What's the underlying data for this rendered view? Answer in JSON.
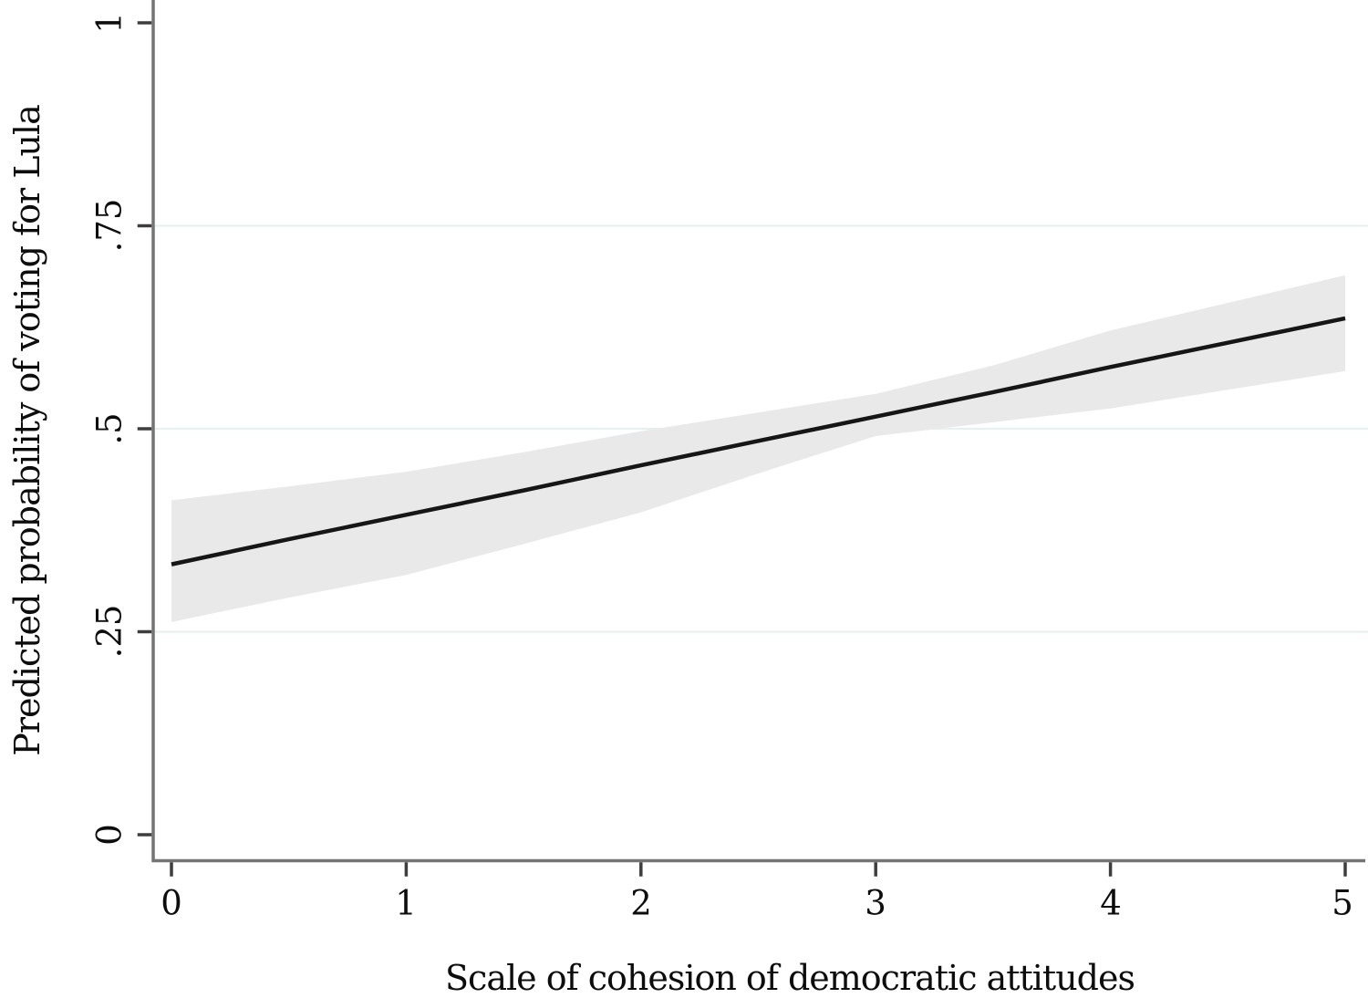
{
  "chart_data": {
    "type": "line",
    "title": "",
    "xlabel": "Scale of cohesion of democratic attitudes",
    "ylabel": "Predicted probability of voting for Lula",
    "xlim": [
      0,
      5
    ],
    "ylim": [
      0,
      1
    ],
    "x_ticks": [
      0,
      1,
      2,
      3,
      4,
      5
    ],
    "x_tick_labels": [
      "0",
      "1",
      "2",
      "3",
      "4",
      "5"
    ],
    "y_ticks": [
      0,
      0.25,
      0.5,
      0.75,
      1
    ],
    "y_tick_labels": [
      "0",
      ".25",
      ".5",
      ".75",
      "1"
    ],
    "gridline_values": [
      0.25,
      0.5,
      0.75
    ],
    "grid": "horizontal-only",
    "legend": "none",
    "series": [
      {
        "name": "predicted-probability-fit-line",
        "type": "line",
        "x": [
          0,
          0.5,
          1,
          1.5,
          2,
          2.5,
          3,
          3.5,
          4,
          4.5,
          5
        ],
        "y": [
          0.333,
          0.364,
          0.394,
          0.424,
          0.455,
          0.485,
          0.515,
          0.545,
          0.576,
          0.606,
          0.636
        ]
      },
      {
        "name": "confidence-interval-band",
        "type": "area",
        "x": [
          0,
          0.5,
          1,
          1.5,
          2,
          2.5,
          3,
          3.5,
          4,
          4.5,
          5
        ],
        "upper": [
          0.412,
          0.429,
          0.447,
          0.471,
          0.497,
          0.52,
          0.543,
          0.578,
          0.621,
          0.655,
          0.689
        ],
        "lower": [
          0.262,
          0.292,
          0.32,
          0.358,
          0.397,
          0.445,
          0.491,
          0.508,
          0.525,
          0.548,
          0.571
        ]
      }
    ],
    "colors": {
      "fit_line": "#161616",
      "confidence_band": "#e9e9e9",
      "gridline": "#e5f1f0",
      "axis": "#747474",
      "tick": "#3d3d3d",
      "text": "#0d0d0d",
      "background": "#ffffff"
    }
  }
}
